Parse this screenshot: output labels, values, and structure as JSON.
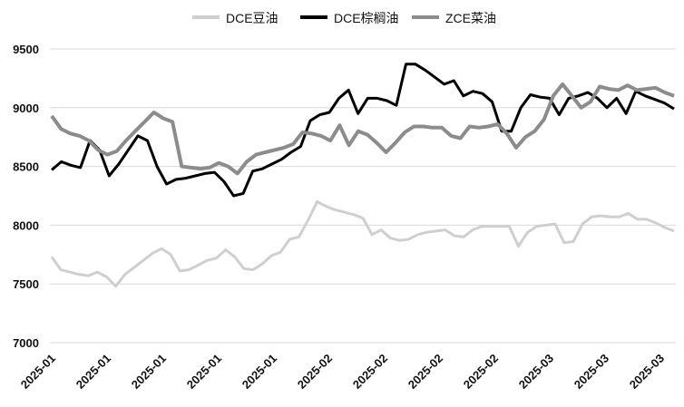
{
  "chart_data": {
    "type": "line",
    "ylim": [
      7000,
      9500
    ],
    "yticks": [
      7000,
      7500,
      8000,
      8500,
      9000,
      9500
    ],
    "grid": "horizontal",
    "legend_position": "top",
    "xtick_labels": [
      "2025-01",
      "2025-01",
      "2025-01",
      "2025-01",
      "2025-01",
      "2025-02",
      "2025-02",
      "2025-02",
      "2025-02",
      "2025-03",
      "2025-03",
      "2025-03"
    ],
    "series": [
      {
        "name": "DCE豆油",
        "color": "#cfcfcf",
        "values": [
          7730,
          7620,
          7600,
          7580,
          7570,
          7600,
          7560,
          7480,
          7580,
          7640,
          7700,
          7760,
          7800,
          7750,
          7610,
          7620,
          7660,
          7700,
          7720,
          7790,
          7730,
          7630,
          7620,
          7670,
          7740,
          7770,
          7880,
          7900,
          8040,
          8200,
          8160,
          8130,
          8110,
          8090,
          8060,
          7920,
          7960,
          7890,
          7870,
          7880,
          7920,
          7940,
          7950,
          7960,
          7910,
          7900,
          7960,
          7990,
          7990,
          7990,
          7990,
          7820,
          7940,
          7990,
          8000,
          8010,
          7850,
          7860,
          8010,
          8070,
          8080,
          8070,
          8070,
          8100,
          8050,
          8050,
          8020,
          7980,
          7950
        ]
      },
      {
        "name": "DCE棕榈油",
        "color": "#000000",
        "values": [
          8470,
          8540,
          8510,
          8490,
          8720,
          8640,
          8420,
          8520,
          8640,
          8760,
          8720,
          8500,
          8350,
          8390,
          8400,
          8420,
          8440,
          8450,
          8370,
          8250,
          8270,
          8460,
          8480,
          8520,
          8560,
          8620,
          8670,
          8890,
          8940,
          8960,
          9080,
          9150,
          8950,
          9080,
          9080,
          9060,
          9020,
          9370,
          9370,
          9320,
          9260,
          9200,
          9230,
          9100,
          9140,
          9120,
          9050,
          8800,
          8800,
          9000,
          9110,
          9090,
          9080,
          8940,
          9080,
          9100,
          9130,
          9080,
          9000,
          9080,
          8950,
          9140,
          9100,
          9070,
          9040,
          8990
        ]
      },
      {
        "name": "ZCE菜油",
        "color": "#8c8c8c",
        "values": [
          8930,
          8820,
          8780,
          8760,
          8720,
          8640,
          8600,
          8630,
          8720,
          8800,
          8880,
          8960,
          8910,
          8880,
          8500,
          8490,
          8480,
          8490,
          8530,
          8500,
          8440,
          8540,
          8600,
          8620,
          8640,
          8660,
          8690,
          8790,
          8780,
          8760,
          8720,
          8850,
          8680,
          8800,
          8770,
          8700,
          8620,
          8700,
          8790,
          8840,
          8840,
          8830,
          8830,
          8760,
          8740,
          8840,
          8830,
          8840,
          8860,
          8780,
          8660,
          8750,
          8800,
          8900,
          9100,
          9200,
          9100,
          9000,
          9050,
          9180,
          9160,
          9150,
          9190,
          9150,
          9160,
          9170,
          9130,
          9100
        ]
      }
    ]
  }
}
